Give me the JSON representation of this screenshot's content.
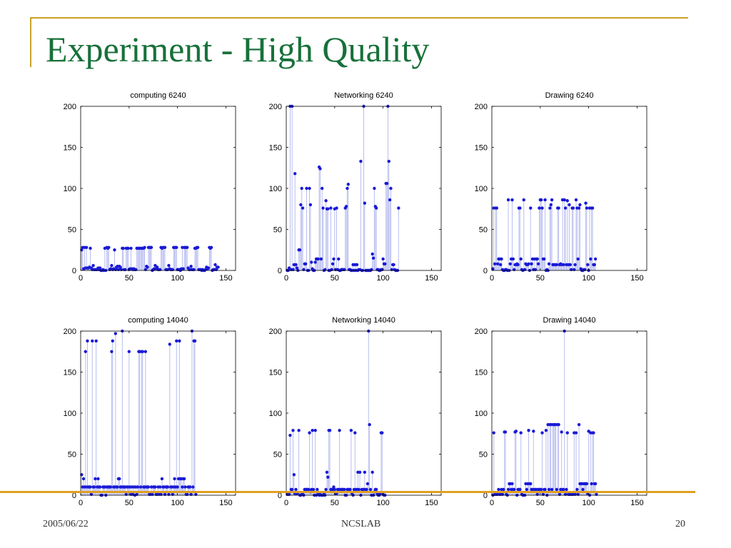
{
  "slide": {
    "title": "Experiment - High Quality",
    "footer_date": "2005/06/22",
    "footer_org": "NCSLAB",
    "page_number": "20"
  },
  "colors": {
    "accent_rule": "#c9a227",
    "bottom_rule": "#e0a020",
    "title_green": "#17713a",
    "marker": "#1a1ad6",
    "stem": "#b8bdf0"
  },
  "chart_data": [
    {
      "type": "scatter",
      "style": "stem",
      "title": "computing 6240",
      "xlim": [
        0,
        160
      ],
      "ylim": [
        0,
        200
      ],
      "xticks": [
        0,
        50,
        100,
        150
      ],
      "yticks": [
        0,
        50,
        100,
        150,
        200
      ],
      "values": [
        25,
        28,
        2,
        28,
        3,
        28,
        3,
        3,
        4,
        27,
        3,
        1,
        6,
        1,
        1,
        1,
        1,
        3,
        1,
        3,
        0,
        0,
        1,
        0,
        27,
        0,
        28,
        27,
        28,
        1,
        2,
        6,
        1,
        2,
        25,
        1,
        4,
        5,
        1,
        5,
        4,
        1,
        27,
        27,
        1,
        1,
        27,
        27,
        27,
        1,
        2,
        27,
        2,
        1,
        2,
        1,
        1,
        27,
        27,
        27,
        27,
        27,
        27,
        27,
        27,
        28,
        1,
        5,
        4,
        28,
        28,
        28,
        28,
        0,
        1,
        2,
        6,
        2,
        4,
        1,
        1,
        1,
        28,
        27,
        28,
        28,
        28,
        1,
        1,
        1,
        6,
        2,
        1,
        1,
        1,
        28,
        28,
        28,
        28,
        1,
        1,
        1,
        0,
        2,
        28,
        2,
        28,
        28,
        28,
        28,
        3,
        1,
        1,
        5,
        1,
        1,
        1,
        27,
        27,
        28,
        28,
        1,
        1,
        1,
        0,
        1,
        0,
        0,
        1,
        4,
        2,
        3,
        28,
        27,
        28,
        0,
        1,
        1,
        7,
        1,
        4,
        4
      ]
    },
    {
      "type": "scatter",
      "style": "stem",
      "title": "Networking 6240",
      "xlim": [
        0,
        160
      ],
      "ylim": [
        0,
        200
      ],
      "xticks": [
        0,
        50,
        100,
        150
      ],
      "yticks": [
        0,
        50,
        100,
        150,
        200
      ],
      "values": [
        0,
        0,
        3,
        200,
        1,
        200,
        1,
        7,
        118,
        7,
        3,
        0,
        25,
        25,
        80,
        100,
        76,
        1,
        8,
        8,
        100,
        0,
        0,
        100,
        80,
        10,
        2,
        0,
        0,
        10,
        14,
        14,
        14,
        126,
        124,
        14,
        100,
        76,
        0,
        1,
        85,
        75,
        75,
        0,
        0,
        76,
        1,
        8,
        14,
        75,
        1,
        76,
        1,
        14,
        0,
        0,
        1,
        1,
        1,
        1,
        76,
        78,
        100,
        105,
        1,
        1,
        0,
        0,
        7,
        0,
        7,
        0,
        7,
        0,
        1,
        1,
        133,
        0,
        0,
        200,
        82,
        0,
        0,
        0,
        0,
        0,
        0,
        1,
        20,
        15,
        100,
        78,
        76,
        1,
        1,
        0,
        0,
        1,
        1,
        14,
        8,
        8,
        106,
        106,
        200,
        133,
        86,
        100,
        1,
        7,
        7,
        1,
        0,
        0,
        0,
        76
      ]
    },
    {
      "type": "scatter",
      "style": "stem",
      "title": "Drawing 6240",
      "xlim": [
        0,
        160
      ],
      "ylim": [
        0,
        200
      ],
      "xticks": [
        0,
        50,
        100,
        150
      ],
      "yticks": [
        0,
        50,
        100,
        150,
        200
      ],
      "values": [
        2,
        76,
        8,
        76,
        76,
        8,
        14,
        14,
        7,
        14,
        1,
        0,
        0,
        1,
        1,
        0,
        86,
        0,
        8,
        14,
        86,
        14,
        1,
        7,
        7,
        8,
        7,
        76,
        76,
        14,
        1,
        0,
        86,
        1,
        8,
        7,
        7,
        8,
        0,
        76,
        8,
        14,
        1,
        14,
        1,
        14,
        14,
        8,
        76,
        86,
        86,
        76,
        14,
        14,
        86,
        0,
        1,
        0,
        8,
        76,
        80,
        86,
        7,
        7,
        7,
        7,
        7,
        76,
        76,
        7,
        8,
        7,
        86,
        7,
        86,
        76,
        7,
        85,
        7,
        80,
        7,
        1,
        76,
        76,
        1,
        7,
        86,
        76,
        14,
        76,
        80,
        2,
        0,
        0,
        1,
        1,
        82,
        76,
        7,
        0,
        76,
        14,
        76,
        76,
        7,
        7,
        14
      ]
    },
    {
      "type": "scatter",
      "style": "stem",
      "title": "computing 14040",
      "xlim": [
        0,
        160
      ],
      "ylim": [
        0,
        200
      ],
      "xticks": [
        0,
        50,
        100,
        150
      ],
      "yticks": [
        0,
        50,
        100,
        150,
        200
      ],
      "values": [
        25,
        10,
        20,
        10,
        175,
        10,
        188,
        10,
        10,
        10,
        1,
        188,
        10,
        10,
        20,
        188,
        10,
        20,
        10,
        10,
        0,
        0,
        10,
        10,
        10,
        0,
        10,
        10,
        10,
        10,
        10,
        175,
        188,
        10,
        10,
        197,
        10,
        10,
        20,
        20,
        10,
        10,
        200,
        10,
        10,
        10,
        1,
        10,
        10,
        175,
        10,
        1,
        10,
        1,
        10,
        0,
        10,
        1,
        10,
        175,
        175,
        10,
        175,
        175,
        10,
        10,
        175,
        10,
        10,
        10,
        1,
        1,
        10,
        1,
        10,
        10,
        10,
        1,
        1,
        10,
        1,
        10,
        1,
        20,
        10,
        10,
        1,
        10,
        10,
        10,
        1,
        184,
        10,
        10,
        1,
        10,
        20,
        10,
        188,
        10,
        20,
        188,
        20,
        20,
        10,
        20,
        20,
        10,
        1,
        1,
        10,
        10,
        10,
        1,
        200,
        10,
        188,
        188,
        1
      ]
    },
    {
      "type": "scatter",
      "style": "stem",
      "title": "Networking 14040",
      "xlim": [
        0,
        160
      ],
      "ylim": [
        0,
        200
      ],
      "xticks": [
        0,
        50,
        100,
        150
      ],
      "yticks": [
        0,
        50,
        100,
        150,
        200
      ],
      "values": [
        1,
        1,
        1,
        73,
        7,
        7,
        79,
        25,
        2,
        7,
        2,
        3,
        79,
        0,
        0,
        1,
        3,
        0,
        7,
        7,
        7,
        7,
        7,
        76,
        4,
        7,
        79,
        7,
        0,
        79,
        0,
        7,
        2,
        0,
        1,
        0,
        0,
        0,
        2,
        0,
        7,
        28,
        22,
        79,
        79,
        7,
        7,
        7,
        10,
        7,
        2,
        2,
        7,
        7,
        79,
        7,
        7,
        7,
        7,
        7,
        0,
        0,
        7,
        7,
        7,
        7,
        79,
        2,
        0,
        7,
        76,
        7,
        7,
        28,
        7,
        28,
        0,
        7,
        7,
        7,
        28,
        7,
        7,
        14,
        200,
        86,
        7,
        0,
        28,
        0,
        4,
        7,
        7,
        2,
        0,
        0,
        2,
        76,
        76,
        1,
        0,
        0
      ]
    },
    {
      "type": "scatter",
      "style": "stem",
      "title": "Drawing 14040",
      "xlim": [
        0,
        160
      ],
      "ylim": [
        0,
        200
      ],
      "xticks": [
        0,
        50,
        100,
        150
      ],
      "yticks": [
        0,
        50,
        100,
        150,
        200
      ],
      "values": [
        0,
        76,
        1,
        1,
        1,
        1,
        7,
        1,
        1,
        7,
        1,
        7,
        77,
        77,
        1,
        0,
        7,
        14,
        14,
        7,
        14,
        7,
        7,
        77,
        78,
        0,
        7,
        7,
        7,
        76,
        1,
        0,
        0,
        0,
        14,
        7,
        14,
        79,
        14,
        14,
        7,
        7,
        78,
        7,
        7,
        7,
        1,
        7,
        7,
        7,
        7,
        76,
        1,
        7,
        7,
        79,
        0,
        86,
        7,
        86,
        86,
        7,
        86,
        86,
        86,
        86,
        7,
        86,
        86,
        1,
        7,
        77,
        7,
        7,
        200,
        1,
        7,
        76,
        1,
        1,
        1,
        1,
        1,
        1,
        76,
        1,
        76,
        7,
        1,
        86,
        14,
        14,
        14,
        7,
        14,
        14,
        14,
        14,
        2,
        78,
        0,
        76,
        14,
        76,
        76,
        14,
        14,
        1
      ]
    }
  ]
}
